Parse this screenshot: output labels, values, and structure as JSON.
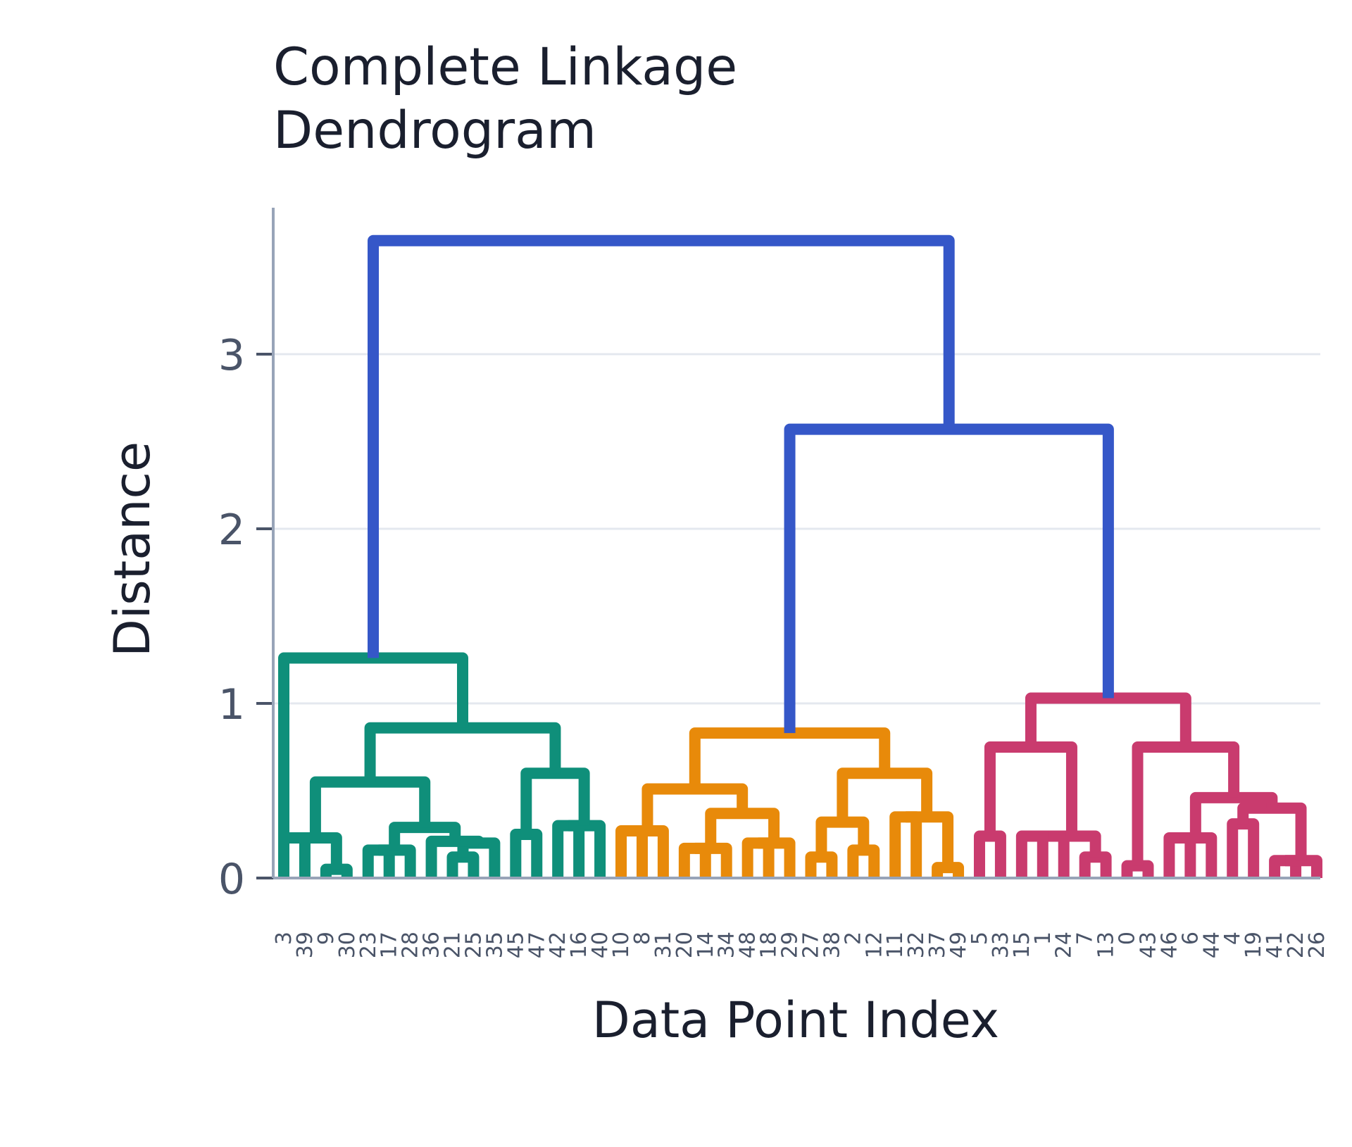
{
  "chart_data": {
    "type": "dendrogram",
    "title_lines": [
      "Complete Linkage",
      "Dendrogram"
    ],
    "xlabel": "Data Point Index",
    "ylabel": "Distance",
    "ylim": [
      0,
      4
    ],
    "yticks": [
      0,
      1,
      2,
      3
    ],
    "grid": true,
    "leaves": [
      "3",
      "39",
      "9",
      "30",
      "23",
      "17",
      "28",
      "36",
      "21",
      "25",
      "35",
      "45",
      "47",
      "42",
      "16",
      "40",
      "10",
      "8",
      "31",
      "20",
      "14",
      "34",
      "48",
      "18",
      "29",
      "27",
      "38",
      "2",
      "12",
      "11",
      "32",
      "37",
      "49",
      "5",
      "33",
      "15",
      "1",
      "24",
      "7",
      "13",
      "0",
      "43",
      "46",
      "6",
      "44",
      "4",
      "19",
      "41",
      "22",
      "26"
    ],
    "cluster_colors": {
      "teal": "#0f8f7a",
      "orange": "#e88a0a",
      "pink": "#c93b6e",
      "blue": "#3557c8"
    },
    "links": [
      {
        "a": "3",
        "b": "39",
        "h": 0.23,
        "color": "teal"
      },
      {
        "a": "9",
        "b": "30",
        "h": 0.05,
        "color": "teal"
      },
      {
        "a": "23",
        "b": "17",
        "h": 0.16,
        "color": "teal"
      },
      {
        "a": "21",
        "b": "25",
        "h": 0.12,
        "color": "teal"
      },
      {
        "a": "35",
        "b": "45",
        "h": 0.2,
        "color": "teal"
      },
      {
        "a": "42",
        "b": "16",
        "h": 0.3,
        "color": "teal"
      },
      {
        "a": "10",
        "b": "8",
        "h": 0.27,
        "color": "orange"
      },
      {
        "a": "31",
        "b": "20",
        "h": 0.17,
        "color": "orange"
      },
      {
        "a": "18",
        "b": "29",
        "h": 0.12,
        "color": "orange"
      },
      {
        "a": "2",
        "b": "12",
        "h": 0.16,
        "color": "orange"
      },
      {
        "a": "37",
        "b": "49",
        "h": 0.06,
        "color": "orange"
      },
      {
        "a": "5",
        "b": "33",
        "h": 0.24,
        "color": "pink"
      },
      {
        "a": "24",
        "b": "7",
        "h": 0.12,
        "color": "pink"
      },
      {
        "a": "43",
        "b": "46",
        "h": 0.07,
        "color": "pink"
      },
      {
        "a": "6",
        "b": "44",
        "h": 0.1,
        "color": "pink"
      },
      {
        "a": "22",
        "b": "26",
        "h": 0.02,
        "color": "pink"
      }
    ],
    "groups": [
      {
        "id": "t1",
        "children": [
          "3",
          "39"
        ],
        "h": 0.23,
        "color": "teal"
      },
      {
        "id": "t2",
        "children": [
          "9",
          "30"
        ],
        "h": 0.05,
        "color": "teal"
      },
      {
        "id": "t3",
        "children": [
          "t1",
          "t2"
        ],
        "h": 0.22,
        "color": "teal"
      },
      {
        "id": "t4",
        "children": [
          "23",
          "17"
        ],
        "h": 0.16,
        "color": "teal"
      },
      {
        "id": "t5",
        "children": [
          "t4",
          "28"
        ],
        "h": 0.03,
        "color": "teal"
      },
      {
        "id": "t6",
        "children": [
          "21",
          "25"
        ],
        "h": 0.12,
        "color": "teal"
      },
      {
        "id": "t7",
        "children": [
          "t6",
          "35"
        ],
        "h": 0.2,
        "color": "teal"
      },
      {
        "id": "t8",
        "children": [
          "36",
          "t7"
        ],
        "h": 0.21,
        "color": "teal"
      },
      {
        "id": "t9",
        "children": [
          "t5",
          "t8"
        ],
        "h": 0.29,
        "color": "teal"
      },
      {
        "id": "t10",
        "children": [
          "45",
          "47"
        ],
        "h": 0.25,
        "color": "teal"
      },
      {
        "id": "t11",
        "children": [
          "42",
          "16"
        ],
        "h": 0.3,
        "color": "teal"
      },
      {
        "id": "t12",
        "children": [
          "t11",
          "40"
        ],
        "h": 0.15,
        "color": "teal"
      },
      {
        "id": "t13",
        "children": [
          "t10",
          "t12"
        ],
        "h": 0.6,
        "color": "teal"
      },
      {
        "id": "t14",
        "children": [
          "t9",
          "t3"
        ],
        "h": 0.55,
        "color": "teal"
      },
      {
        "id": "t15",
        "children": [
          "t14",
          "t13"
        ],
        "h": 0.86,
        "color": "teal"
      },
      {
        "id": "T",
        "children": [
          "3",
          "t15"
        ],
        "h": 1.26,
        "color": "teal"
      },
      {
        "id": "o1",
        "children": [
          "10",
          "8"
        ],
        "h": 0.27,
        "color": "orange"
      },
      {
        "id": "o2",
        "children": [
          "o1",
          "31"
        ],
        "h": 0.12,
        "color": "orange"
      },
      {
        "id": "o3",
        "children": [
          "20",
          "14"
        ],
        "h": 0.17,
        "color": "orange"
      },
      {
        "id": "o4",
        "children": [
          "o3",
          "34"
        ],
        "h": 0.1,
        "color": "orange"
      },
      {
        "id": "o5",
        "children": [
          "48",
          "18"
        ],
        "h": 0.2,
        "color": "orange"
      },
      {
        "id": "o6",
        "children": [
          "o5",
          "29"
        ],
        "h": 0.11,
        "color": "orange"
      },
      {
        "id": "o7",
        "children": [
          "o4",
          "o6"
        ],
        "h": 0.37,
        "color": "orange"
      },
      {
        "id": "o8",
        "children": [
          "o2",
          "o7"
        ],
        "h": 0.51,
        "color": "orange"
      },
      {
        "id": "o9",
        "children": [
          "27",
          "38"
        ],
        "h": 0.12,
        "color": "orange"
      },
      {
        "id": "o10",
        "children": [
          "2",
          "12"
        ],
        "h": 0.16,
        "color": "orange"
      },
      {
        "id": "o11",
        "children": [
          "o9",
          "o10"
        ],
        "h": 0.32,
        "color": "orange"
      },
      {
        "id": "o12",
        "children": [
          "11",
          "32"
        ],
        "h": 0.35,
        "color": "orange"
      },
      {
        "id": "o13",
        "children": [
          "37",
          "49"
        ],
        "h": 0.06,
        "color": "orange"
      },
      {
        "id": "o14",
        "children": [
          "o12",
          "o13"
        ],
        "h": 0.16,
        "color": "orange"
      },
      {
        "id": "o15",
        "children": [
          "o11",
          "o14"
        ],
        "h": 0.6,
        "color": "orange"
      },
      {
        "id": "O",
        "children": [
          "o8",
          "o15"
        ],
        "h": 0.83,
        "color": "orange"
      },
      {
        "id": "p1",
        "children": [
          "5",
          "33"
        ],
        "h": 0.24,
        "color": "pink"
      },
      {
        "id": "p2",
        "children": [
          "15",
          "1"
        ],
        "h": 0.24,
        "color": "pink"
      },
      {
        "id": "p3",
        "children": [
          "p2",
          "24"
        ],
        "h": 0.01,
        "color": "pink"
      },
      {
        "id": "p4",
        "children": [
          "7",
          "13"
        ],
        "h": 0.12,
        "color": "pink"
      },
      {
        "id": "p5",
        "children": [
          "p3",
          "p4"
        ],
        "h": 0.22,
        "color": "pink"
      },
      {
        "id": "p6",
        "children": [
          "p1",
          "p5"
        ],
        "h": 0.75,
        "color": "pink"
      },
      {
        "id": "p7",
        "children": [
          "0",
          "43"
        ],
        "h": 0.07,
        "color": "pink"
      },
      {
        "id": "p8",
        "children": [
          "46",
          "6"
        ],
        "h": 0.23,
        "color": "pink"
      },
      {
        "id": "p9",
        "children": [
          "p8",
          "44"
        ],
        "h": 0.1,
        "color": "pink"
      },
      {
        "id": "p10",
        "children": [
          "4",
          "19"
        ],
        "h": 0.31,
        "color": "pink"
      },
      {
        "id": "p11",
        "children": [
          "41",
          "22"
        ],
        "h": 0.1,
        "color": "pink"
      },
      {
        "id": "p12",
        "children": [
          "p11",
          "26"
        ],
        "h": 0.03,
        "color": "pink"
      },
      {
        "id": "p13",
        "children": [
          "p10",
          "p12"
        ],
        "h": 0.4,
        "color": "pink"
      },
      {
        "id": "p14",
        "children": [
          "p9",
          "p13"
        ],
        "h": 0.46,
        "color": "pink"
      },
      {
        "id": "p15",
        "children": [
          "p7",
          "p14"
        ],
        "h": 0.75,
        "color": "pink"
      },
      {
        "id": "P",
        "children": [
          "p6",
          "p15"
        ],
        "h": 1.03,
        "color": "pink"
      },
      {
        "id": "B1",
        "children": [
          "O",
          "P"
        ],
        "h": 2.57,
        "color": "blue"
      },
      {
        "id": "B0",
        "children": [
          "T",
          "B1"
        ],
        "h": 3.65,
        "color": "blue"
      }
    ]
  }
}
